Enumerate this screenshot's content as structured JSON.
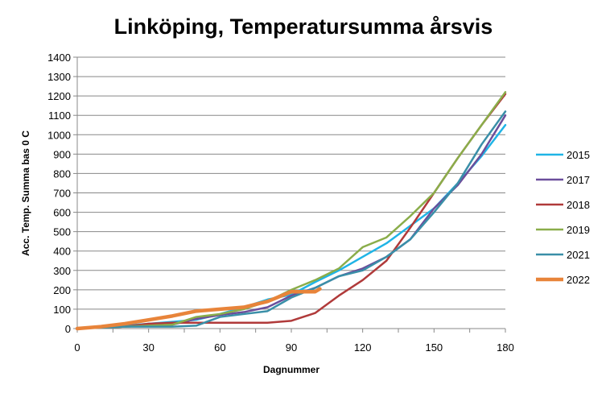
{
  "chart_data": {
    "type": "line",
    "title": "Linköping, Temperatursumma årsvis",
    "xlabel": "Dagnummer",
    "ylabel": "Acc. Temp. Summa bas 0 C",
    "xlim": [
      0,
      180
    ],
    "ylim": [
      0,
      1400
    ],
    "xticks": [
      0,
      30,
      60,
      90,
      120,
      150,
      180
    ],
    "yticks": [
      0,
      100,
      200,
      300,
      400,
      500,
      600,
      700,
      800,
      900,
      1000,
      1100,
      1200,
      1300,
      1400
    ],
    "grid": "horizontal",
    "legend_position": "right",
    "series": [
      {
        "name": "2015",
        "color": "#1fb4e6",
        "width": 2.5,
        "x": [
          0,
          10,
          20,
          30,
          40,
          50,
          60,
          70,
          80,
          90,
          100,
          110,
          120,
          130,
          140,
          150,
          160,
          170,
          180
        ],
        "y": [
          0,
          10,
          15,
          25,
          35,
          45,
          75,
          110,
          150,
          175,
          240,
          300,
          370,
          440,
          530,
          620,
          750,
          890,
          1050
        ]
      },
      {
        "name": "2017",
        "color": "#6b4e9b",
        "width": 2.5,
        "x": [
          0,
          10,
          20,
          30,
          40,
          50,
          60,
          70,
          80,
          90,
          100,
          110,
          120,
          130,
          140,
          150,
          160,
          170,
          180
        ],
        "y": [
          0,
          5,
          10,
          15,
          20,
          50,
          70,
          85,
          110,
          170,
          210,
          270,
          310,
          370,
          460,
          620,
          740,
          900,
          1100
        ]
      },
      {
        "name": "2018",
        "color": "#b03a3a",
        "width": 2.5,
        "x": [
          0,
          10,
          20,
          30,
          40,
          50,
          60,
          70,
          80,
          90,
          100,
          110,
          120,
          130,
          140,
          150,
          160,
          170,
          180
        ],
        "y": [
          0,
          5,
          10,
          25,
          30,
          30,
          30,
          30,
          30,
          40,
          80,
          170,
          250,
          350,
          520,
          700,
          880,
          1050,
          1210
        ]
      },
      {
        "name": "2019",
        "color": "#8aad4a",
        "width": 2.5,
        "x": [
          0,
          10,
          20,
          30,
          40,
          50,
          60,
          70,
          80,
          90,
          100,
          110,
          120,
          130,
          140,
          150,
          160,
          170,
          180
        ],
        "y": [
          0,
          5,
          10,
          15,
          20,
          60,
          75,
          100,
          140,
          200,
          250,
          310,
          420,
          470,
          580,
          700,
          880,
          1050,
          1220
        ]
      },
      {
        "name": "2021",
        "color": "#3a8fa8",
        "width": 2.5,
        "x": [
          0,
          10,
          20,
          30,
          40,
          50,
          60,
          70,
          80,
          90,
          100,
          110,
          120,
          130,
          140,
          150,
          160,
          170,
          180
        ],
        "y": [
          0,
          5,
          10,
          10,
          10,
          15,
          60,
          75,
          90,
          160,
          210,
          270,
          300,
          370,
          460,
          600,
          750,
          950,
          1120
        ]
      },
      {
        "name": "2022",
        "color": "#e8843a",
        "width": 4.5,
        "x": [
          0,
          10,
          20,
          30,
          40,
          50,
          60,
          70,
          80,
          90,
          100,
          102
        ],
        "y": [
          0,
          10,
          25,
          45,
          65,
          90,
          100,
          110,
          140,
          190,
          190,
          205
        ]
      }
    ]
  }
}
